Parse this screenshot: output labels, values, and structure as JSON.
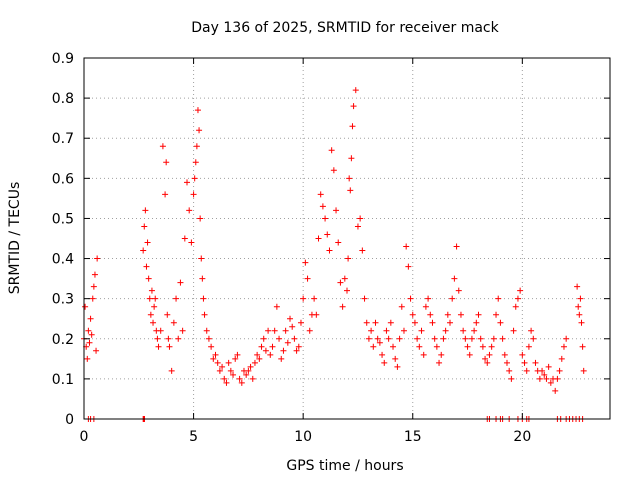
{
  "chart_data": {
    "type": "scatter",
    "title": "Day 136 of 2025, SRMTID for receiver mack",
    "xlabel": "GPS time / hours",
    "ylabel": "SRMTID / TECUs",
    "xlim": [
      0,
      24
    ],
    "ylim": [
      0,
      0.9
    ],
    "xticks": [
      0,
      5,
      10,
      15,
      20
    ],
    "xtick_labels": [
      "0",
      "5",
      "10",
      "15",
      "20"
    ],
    "yticks": [
      0,
      0.1,
      0.2,
      0.3,
      0.4,
      0.5,
      0.6,
      0.7,
      0.8,
      0.9
    ],
    "ytick_labels": [
      "0",
      "0.1",
      "0.2",
      "0.3",
      "0.4",
      "0.5",
      "0.6",
      "0.7",
      "0.8",
      "0.9"
    ],
    "grid": true,
    "marker": "plus",
    "marker_color": "#ff0000",
    "series": [
      {
        "name": "SRMTID",
        "x": [
          0.0,
          0.05,
          0.1,
          0.15,
          0.2,
          0.25,
          0.3,
          0.35,
          0.4,
          0.45,
          0.5,
          0.55,
          0.6,
          2.7,
          2.75,
          2.8,
          2.85,
          2.9,
          2.95,
          3.0,
          3.05,
          3.1,
          3.15,
          3.2,
          3.25,
          3.3,
          3.35,
          3.4,
          3.5,
          3.6,
          3.7,
          3.75,
          3.8,
          3.85,
          3.9,
          4.0,
          4.1,
          4.2,
          4.3,
          4.4,
          4.5,
          4.6,
          4.7,
          4.8,
          4.9,
          5.0,
          5.05,
          5.1,
          5.15,
          5.2,
          5.25,
          5.3,
          5.35,
          5.4,
          5.45,
          5.5,
          5.6,
          5.7,
          5.8,
          5.9,
          6.0,
          6.1,
          6.2,
          6.3,
          6.4,
          6.5,
          6.6,
          6.7,
          6.8,
          6.9,
          7.0,
          7.1,
          7.2,
          7.3,
          7.4,
          7.5,
          7.6,
          7.7,
          7.8,
          7.9,
          8.0,
          8.1,
          8.2,
          8.3,
          8.4,
          8.5,
          8.6,
          8.7,
          8.8,
          8.9,
          9.0,
          9.1,
          9.2,
          9.3,
          9.4,
          9.5,
          9.6,
          9.7,
          9.8,
          9.9,
          10.0,
          10.1,
          10.2,
          10.3,
          10.4,
          10.5,
          10.6,
          10.7,
          10.8,
          10.9,
          11.0,
          11.1,
          11.2,
          11.3,
          11.4,
          11.5,
          11.6,
          11.7,
          11.8,
          11.9,
          12.0,
          12.05,
          12.1,
          12.15,
          12.2,
          12.25,
          12.3,
          12.4,
          12.5,
          12.6,
          12.7,
          12.8,
          12.9,
          13.0,
          13.1,
          13.2,
          13.3,
          13.4,
          13.5,
          13.6,
          13.7,
          13.8,
          13.9,
          14.0,
          14.1,
          14.2,
          14.3,
          14.4,
          14.5,
          14.6,
          14.7,
          14.8,
          14.9,
          15.0,
          15.1,
          15.2,
          15.3,
          15.4,
          15.5,
          15.6,
          15.7,
          15.8,
          15.9,
          16.0,
          16.1,
          16.2,
          16.3,
          16.4,
          16.5,
          16.6,
          16.7,
          16.8,
          16.9,
          17.0,
          17.1,
          17.2,
          17.3,
          17.4,
          17.5,
          17.6,
          17.7,
          17.8,
          17.9,
          18.0,
          18.1,
          18.2,
          18.3,
          18.4,
          18.5,
          18.6,
          18.7,
          18.8,
          18.9,
          19.0,
          19.1,
          19.2,
          19.3,
          19.4,
          19.5,
          19.6,
          19.7,
          19.8,
          19.9,
          20.0,
          20.1,
          20.2,
          20.3,
          20.4,
          20.5,
          20.6,
          20.7,
          20.8,
          20.9,
          21.0,
          21.1,
          21.2,
          21.3,
          21.4,
          21.5,
          21.6,
          21.7,
          21.8,
          21.9,
          22.0,
          22.5,
          22.55,
          22.6,
          22.65,
          22.7,
          22.75,
          22.8
        ],
        "y": [
          0.2,
          0.28,
          0.18,
          0.15,
          0.22,
          0.19,
          0.25,
          0.21,
          0.3,
          0.33,
          0.36,
          0.17,
          0.4,
          0.42,
          0.48,
          0.52,
          0.38,
          0.44,
          0.35,
          0.3,
          0.26,
          0.32,
          0.24,
          0.28,
          0.3,
          0.22,
          0.2,
          0.18,
          0.22,
          0.68,
          0.56,
          0.64,
          0.26,
          0.2,
          0.18,
          0.12,
          0.24,
          0.3,
          0.2,
          0.34,
          0.22,
          0.45,
          0.59,
          0.52,
          0.44,
          0.56,
          0.6,
          0.64,
          0.68,
          0.77,
          0.72,
          0.5,
          0.4,
          0.35,
          0.3,
          0.26,
          0.22,
          0.2,
          0.18,
          0.15,
          0.16,
          0.14,
          0.12,
          0.13,
          0.1,
          0.09,
          0.14,
          0.12,
          0.11,
          0.15,
          0.16,
          0.1,
          0.09,
          0.12,
          0.11,
          0.12,
          0.13,
          0.1,
          0.14,
          0.16,
          0.15,
          0.18,
          0.2,
          0.17,
          0.22,
          0.16,
          0.18,
          0.22,
          0.28,
          0.2,
          0.15,
          0.17,
          0.22,
          0.19,
          0.25,
          0.23,
          0.2,
          0.17,
          0.18,
          0.24,
          0.3,
          0.39,
          0.35,
          0.22,
          0.26,
          0.3,
          0.26,
          0.45,
          0.56,
          0.53,
          0.5,
          0.46,
          0.42,
          0.67,
          0.62,
          0.52,
          0.44,
          0.34,
          0.28,
          0.35,
          0.32,
          0.4,
          0.6,
          0.57,
          0.65,
          0.73,
          0.78,
          0.82,
          0.48,
          0.5,
          0.42,
          0.3,
          0.24,
          0.2,
          0.22,
          0.18,
          0.24,
          0.2,
          0.19,
          0.16,
          0.14,
          0.22,
          0.2,
          0.24,
          0.18,
          0.15,
          0.13,
          0.2,
          0.28,
          0.22,
          0.43,
          0.38,
          0.3,
          0.26,
          0.24,
          0.2,
          0.18,
          0.22,
          0.16,
          0.28,
          0.3,
          0.26,
          0.24,
          0.2,
          0.18,
          0.14,
          0.16,
          0.2,
          0.22,
          0.26,
          0.24,
          0.3,
          0.35,
          0.43,
          0.32,
          0.26,
          0.22,
          0.2,
          0.18,
          0.16,
          0.2,
          0.22,
          0.24,
          0.26,
          0.2,
          0.18,
          0.15,
          0.14,
          0.16,
          0.18,
          0.2,
          0.26,
          0.3,
          0.24,
          0.2,
          0.16,
          0.14,
          0.12,
          0.1,
          0.22,
          0.28,
          0.3,
          0.32,
          0.16,
          0.14,
          0.12,
          0.18,
          0.22,
          0.2,
          0.14,
          0.12,
          0.1,
          0.12,
          0.11,
          0.1,
          0.13,
          0.09,
          0.1,
          0.07,
          0.1,
          0.12,
          0.15,
          0.18,
          0.2,
          0.33,
          0.28,
          0.26,
          0.3,
          0.24,
          0.18,
          0.12
        ],
        "zero_x": [
          0.2,
          0.3,
          0.45,
          2.7,
          2.72,
          2.74,
          2.76,
          18.4,
          18.5,
          18.8,
          19.0,
          19.1,
          19.4,
          19.8,
          20.0,
          20.2,
          20.3,
          21.6,
          21.75,
          22.0,
          22.15,
          22.3,
          22.45,
          22.6,
          22.75
        ]
      }
    ]
  }
}
